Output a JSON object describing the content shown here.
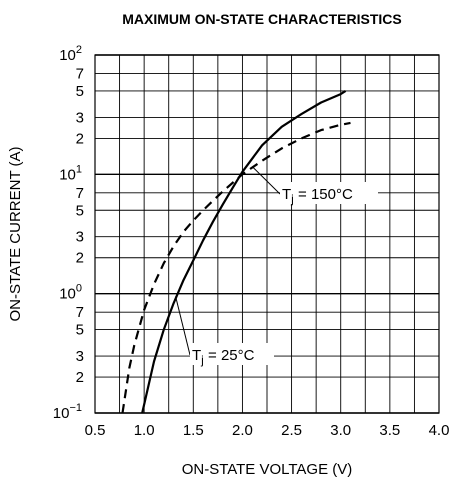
{
  "chart_data": {
    "type": "line",
    "title": "MAXIMUM ON-STATE CHARACTERISTICS",
    "xlabel": "ON-STATE VOLTAGE  (V)",
    "ylabel": "ON-STATE CURRENT  (A)",
    "xlim": [
      0.5,
      4.0
    ],
    "ylim": [
      0.1,
      100
    ],
    "yscale": "log",
    "grid": true,
    "x_ticks": [
      "0.5",
      "1.0",
      "1.5",
      "2.0",
      "2.5",
      "3.0",
      "3.5",
      "4.0"
    ],
    "y_ticks": [
      {
        "base": "10",
        "exp": "−1",
        "value": 0.1
      },
      {
        "label": "2",
        "value": 0.2
      },
      {
        "label": "3",
        "value": 0.3
      },
      {
        "label": "5",
        "value": 0.5
      },
      {
        "label": "7",
        "value": 0.7
      },
      {
        "base": "10",
        "exp": "0",
        "value": 1
      },
      {
        "label": "2",
        "value": 2
      },
      {
        "label": "3",
        "value": 3
      },
      {
        "label": "5",
        "value": 5
      },
      {
        "label": "7",
        "value": 7
      },
      {
        "base": "10",
        "exp": "1",
        "value": 10
      },
      {
        "label": "2",
        "value": 20
      },
      {
        "label": "3",
        "value": 30
      },
      {
        "label": "5",
        "value": 50
      },
      {
        "label": "7",
        "value": 70
      },
      {
        "base": "10",
        "exp": "2",
        "value": 100
      }
    ],
    "series": [
      {
        "name": "Tj = 25°C",
        "label_parts": {
          "t": "T",
          "sub": "j",
          "rest": " = 25°C"
        },
        "style": "solid",
        "x": [
          0.98,
          1.1,
          1.2,
          1.3,
          1.4,
          1.5,
          1.6,
          1.7,
          1.8,
          1.9,
          2.0,
          2.2,
          2.4,
          2.6,
          2.8,
          3.0,
          3.05
        ],
        "y": [
          0.1,
          0.27,
          0.5,
          0.83,
          1.3,
          1.9,
          2.8,
          4.0,
          5.6,
          7.7,
          10.5,
          17.5,
          25,
          32,
          40,
          47,
          50
        ]
      },
      {
        "name": "Tj = 150°C",
        "label_parts": {
          "t": "T",
          "sub": "j",
          "rest": " = 150°C"
        },
        "style": "dashed",
        "x": [
          0.78,
          0.85,
          0.9,
          1.0,
          1.1,
          1.2,
          1.3,
          1.4,
          1.5,
          1.6,
          1.7,
          1.8,
          2.0,
          2.2,
          2.4,
          2.6,
          2.8,
          3.0,
          3.1
        ],
        "y": [
          0.1,
          0.24,
          0.37,
          0.73,
          1.2,
          1.8,
          2.5,
          3.3,
          4.1,
          5.0,
          6.0,
          7.2,
          10.0,
          13.0,
          16.5,
          20,
          23.5,
          26,
          27
        ]
      }
    ]
  }
}
